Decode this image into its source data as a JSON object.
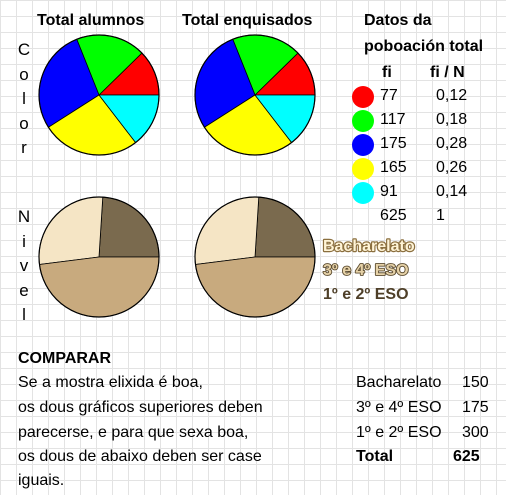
{
  "headers": {
    "total_alumnos": "Total alumnos",
    "total_enquisados": "Total enquisados",
    "datos_line1": "Datos da",
    "datos_line2": "poboación total",
    "col_fi": "fi",
    "col_fin": "fi / N"
  },
  "side_labels": {
    "color": [
      "C",
      "o",
      "l",
      "o",
      "r"
    ],
    "nivel": [
      "N",
      "i",
      "v",
      "e",
      "l"
    ]
  },
  "chart_data": [
    {
      "type": "pie",
      "title": "Total alumnos",
      "slices": [
        {
          "color": "#ff0000",
          "value": 77
        },
        {
          "color": "#00ff00",
          "value": 117
        },
        {
          "color": "#0000ff",
          "value": 175
        },
        {
          "color": "#ffff00",
          "value": 165
        },
        {
          "color": "#00ffff",
          "value": 91
        }
      ]
    },
    {
      "type": "pie",
      "title": "Total enquisados",
      "slices": [
        {
          "color": "#ff0000",
          "value": 77
        },
        {
          "color": "#00ff00",
          "value": 117
        },
        {
          "color": "#0000ff",
          "value": 175
        },
        {
          "color": "#ffff00",
          "value": 165
        },
        {
          "color": "#00ffff",
          "value": 91
        }
      ]
    },
    {
      "type": "pie",
      "title": "",
      "slices": [
        {
          "label": "Bacharelato",
          "color": "#7a6a4e",
          "value": 150
        },
        {
          "label": "3º e 4º ESO",
          "color": "#f5e5c5",
          "value": 175
        },
        {
          "label": "1º e 2º ESO",
          "color": "#c8aa7e",
          "value": 300
        }
      ]
    },
    {
      "type": "pie",
      "title": "",
      "slices": [
        {
          "label": "Bacharelato",
          "color": "#7a6a4e",
          "value": 150
        },
        {
          "label": "3º e 4º ESO",
          "color": "#f5e5c5",
          "value": 175
        },
        {
          "label": "1º e 2º ESO",
          "color": "#c8aa7e",
          "value": 300
        }
      ]
    }
  ],
  "table": {
    "rows": [
      {
        "color": "#ff0000",
        "fi": "77",
        "fin": "0,12"
      },
      {
        "color": "#00ff00",
        "fi": "117",
        "fin": "0,18"
      },
      {
        "color": "#0000ff",
        "fi": "175",
        "fin": "0,28"
      },
      {
        "color": "#ffff00",
        "fi": "165",
        "fin": "0,26"
      },
      {
        "color": "#00ffff",
        "fi": "91",
        "fin": "0,14"
      }
    ],
    "total_fi": "625",
    "total_fin": "1"
  },
  "legend_levels": [
    {
      "label": "Bacharelato",
      "color": "#fff4d6",
      "stroke": "#8b6f3f"
    },
    {
      "label": "3º e 4º ESO",
      "color": "#e6d2a8",
      "stroke": "#5a4a2e"
    },
    {
      "label": "1º e 2º ESO",
      "color": "#4e3f28",
      "stroke": "none"
    }
  ],
  "compare": {
    "title": "COMPARAR",
    "lines": [
      "Se a mostra elixida é boa,",
      "os dous gráficos superiores deben",
      "parecerse, e para que sexa boa,",
      "os dous de abaixo deben  ser case",
      "iguais."
    ]
  },
  "counts": {
    "rows": [
      {
        "label": "Bacharelato",
        "value": "150"
      },
      {
        "label": "3º e 4º ESO",
        "value": "175"
      },
      {
        "label": "1º e 2º ESO",
        "value": "300"
      }
    ],
    "total_label": "Total",
    "total_value": "625"
  }
}
